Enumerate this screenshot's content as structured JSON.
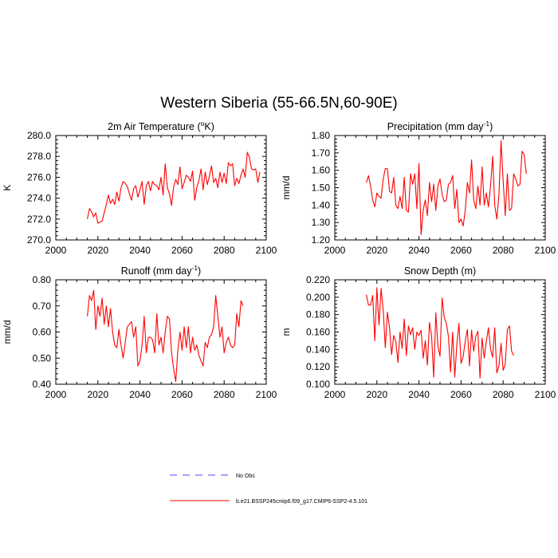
{
  "title": "Western Siberia (55-66.5N,60-90E)",
  "colors": {
    "series": "#ff0000",
    "obs": "#4a4aff",
    "axis": "#000000"
  },
  "legend": {
    "obs_label": "No Obs",
    "model_label": "b.e21.BSSP245cmip6.f09_g17.CMIP6-SSP2-4.5.101"
  },
  "chart_data": [
    {
      "type": "line",
      "title": "2m Air Temperature (",
      "title_sup": "o",
      "title_tail": "K)",
      "ylabel": "K",
      "xlim": [
        2000,
        2100
      ],
      "ylim": [
        270,
        280
      ],
      "xticks": [
        2000,
        2020,
        2040,
        2060,
        2080,
        2100
      ],
      "yticks": [
        "270.0",
        "272.0",
        "274.0",
        "276.0",
        "278.0",
        "280.0"
      ],
      "x_start": 2015,
      "values": [
        272.0,
        273.0,
        272.7,
        272.2,
        272.6,
        271.6,
        271.7,
        271.8,
        272.6,
        273.4,
        274.3,
        273.5,
        273.9,
        273.4,
        274.6,
        273.7,
        275.0,
        275.6,
        275.4,
        275.1,
        274.4,
        273.8,
        274.9,
        275.2,
        274.1,
        274.8,
        275.6,
        273.4,
        275.2,
        275.6,
        274.7,
        275.6,
        275.3,
        275.2,
        274.8,
        276.0,
        274.3,
        277.3,
        275.0,
        274.4,
        273.3,
        275.1,
        275.8,
        275.3,
        277.0,
        274.9,
        275.5,
        276.2,
        276.0,
        275.6,
        276.6,
        273.8,
        275.0,
        275.7,
        276.8,
        274.8,
        276.5,
        275.3,
        276.1,
        277.1,
        275.5,
        275.9,
        275.0,
        276.5,
        275.5,
        276.4,
        275.4,
        277.4,
        277.1,
        277.3,
        275.2,
        275.9,
        275.4,
        276.2,
        276.8,
        276.0,
        278.4,
        277.9,
        276.8,
        276.7,
        276.8,
        275.5,
        276.5
      ]
    },
    {
      "type": "line",
      "title": "Precipitation (mm day",
      "title_sup": "-1",
      "title_tail": ")",
      "ylabel": "mm/d",
      "xlim": [
        2000,
        2100
      ],
      "ylim": [
        1.2,
        1.8
      ],
      "xticks": [
        2000,
        2020,
        2040,
        2060,
        2080,
        2100
      ],
      "yticks": [
        "1.20",
        "1.30",
        "1.40",
        "1.50",
        "1.60",
        "1.70",
        "1.80"
      ],
      "x_start": 2015,
      "values": [
        1.53,
        1.57,
        1.51,
        1.43,
        1.39,
        1.47,
        1.45,
        1.44,
        1.55,
        1.61,
        1.61,
        1.48,
        1.47,
        1.56,
        1.4,
        1.38,
        1.45,
        1.38,
        1.56,
        1.37,
        1.36,
        1.58,
        1.52,
        1.58,
        1.38,
        1.64,
        1.23,
        1.37,
        1.43,
        1.34,
        1.53,
        1.42,
        1.52,
        1.37,
        1.51,
        1.55,
        1.46,
        1.42,
        1.43,
        1.52,
        1.53,
        1.57,
        1.38,
        1.49,
        1.3,
        1.32,
        1.28,
        1.37,
        1.53,
        1.47,
        1.66,
        1.43,
        1.38,
        1.51,
        1.4,
        1.62,
        1.4,
        1.47,
        1.39,
        1.51,
        1.68,
        1.4,
        1.32,
        1.46,
        1.77,
        1.54,
        1.34,
        1.58,
        1.37,
        1.38,
        1.58,
        1.55,
        1.51,
        1.52,
        1.71,
        1.69,
        1.58
      ]
    },
    {
      "type": "line",
      "title": "Runoff (mm day",
      "title_sup": "-1",
      "title_tail": ")",
      "ylabel": "mm/d",
      "xlim": [
        2000,
        2100
      ],
      "ylim": [
        0.4,
        0.8
      ],
      "xticks": [
        2000,
        2020,
        2040,
        2060,
        2080,
        2100
      ],
      "yticks": [
        "0.40",
        "0.50",
        "0.60",
        "0.70",
        "0.80"
      ],
      "x_start": 2015,
      "values": [
        0.66,
        0.74,
        0.72,
        0.76,
        0.61,
        0.7,
        0.66,
        0.73,
        0.63,
        0.7,
        0.62,
        0.69,
        0.6,
        0.55,
        0.54,
        0.61,
        0.55,
        0.5,
        0.56,
        0.62,
        0.63,
        0.64,
        0.58,
        0.62,
        0.47,
        0.49,
        0.55,
        0.66,
        0.52,
        0.58,
        0.58,
        0.57,
        0.52,
        0.67,
        0.55,
        0.58,
        0.52,
        0.6,
        0.66,
        0.65,
        0.52,
        0.46,
        0.41,
        0.53,
        0.6,
        0.53,
        0.62,
        0.54,
        0.62,
        0.52,
        0.58,
        0.53,
        0.55,
        0.51,
        0.49,
        0.47,
        0.56,
        0.54,
        0.58,
        0.59,
        0.62,
        0.74,
        0.66,
        0.58,
        0.62,
        0.52,
        0.56,
        0.58,
        0.55,
        0.54,
        0.55,
        0.67,
        0.62,
        0.72,
        0.7
      ]
    },
    {
      "type": "line",
      "title": "Snow Depth (m)",
      "title_sup": "",
      "title_tail": "",
      "ylabel": "m",
      "xlim": [
        2000,
        2100
      ],
      "ylim": [
        0.1,
        0.22
      ],
      "xticks": [
        2000,
        2020,
        2040,
        2060,
        2080,
        2100
      ],
      "yticks": [
        "0.100",
        "0.120",
        "0.140",
        "0.160",
        "0.180",
        "0.200",
        "0.220"
      ],
      "x_start": 2015,
      "values": [
        0.203,
        0.191,
        0.191,
        0.202,
        0.15,
        0.211,
        0.168,
        0.21,
        0.185,
        0.142,
        0.183,
        0.165,
        0.134,
        0.156,
        0.149,
        0.125,
        0.16,
        0.141,
        0.175,
        0.133,
        0.167,
        0.157,
        0.165,
        0.14,
        0.16,
        0.156,
        0.162,
        0.13,
        0.15,
        0.122,
        0.171,
        0.155,
        0.108,
        0.182,
        0.144,
        0.132,
        0.199,
        0.177,
        0.17,
        0.155,
        0.114,
        0.16,
        0.108,
        0.146,
        0.17,
        0.124,
        0.132,
        0.15,
        0.163,
        0.121,
        0.162,
        0.138,
        0.155,
        0.161,
        0.107,
        0.153,
        0.13,
        0.149,
        0.165,
        0.14,
        0.131,
        0.165,
        0.113,
        0.121,
        0.147,
        0.116,
        0.123,
        0.163,
        0.167,
        0.138,
        0.133
      ]
    }
  ]
}
